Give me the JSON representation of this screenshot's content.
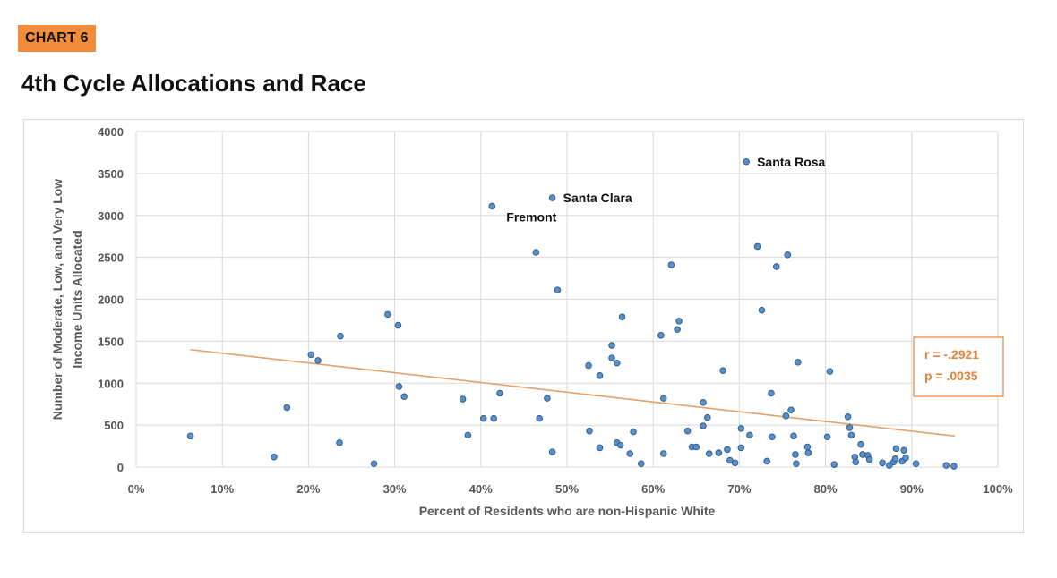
{
  "header": {
    "badge": "CHART 6",
    "title": "4th Cycle Allocations and Race"
  },
  "colors": {
    "badge": "#f28c3a",
    "point_fill": "#5b8fc7",
    "point_stroke": "#2f5f8f",
    "trendline": "#e8a06a",
    "stat_text": "#e8823a"
  },
  "chart_data": {
    "type": "scatter",
    "title": "4th Cycle Allocations and Race",
    "xlabel": "Percent of Residents who are non-Hispanic White",
    "ylabel_lines": [
      "Number of Moderate, Low, and Very Low",
      "Income Units Allocated"
    ],
    "xlim": [
      0,
      100
    ],
    "ylim": [
      0,
      4000
    ],
    "xticks": [
      "0%",
      "10%",
      "20%",
      "30%",
      "40%",
      "50%",
      "60%",
      "70%",
      "80%",
      "90%",
      "100%"
    ],
    "yticks": [
      "0",
      "500",
      "1000",
      "1500",
      "2000",
      "2500",
      "3000",
      "3500",
      "4000"
    ],
    "grid": true,
    "points": [
      {
        "x": 6.3,
        "y": 370
      },
      {
        "x": 16.0,
        "y": 120
      },
      {
        "x": 17.5,
        "y": 710
      },
      {
        "x": 20.3,
        "y": 1340
      },
      {
        "x": 21.1,
        "y": 1270
      },
      {
        "x": 23.6,
        "y": 290
      },
      {
        "x": 23.7,
        "y": 1560
      },
      {
        "x": 27.6,
        "y": 40
      },
      {
        "x": 29.2,
        "y": 1820
      },
      {
        "x": 30.4,
        "y": 1690
      },
      {
        "x": 30.5,
        "y": 960
      },
      {
        "x": 31.1,
        "y": 840
      },
      {
        "x": 37.9,
        "y": 810
      },
      {
        "x": 38.5,
        "y": 380
      },
      {
        "x": 40.3,
        "y": 580
      },
      {
        "x": 41.3,
        "y": 3110,
        "label": "Fremont"
      },
      {
        "x": 41.5,
        "y": 580
      },
      {
        "x": 42.2,
        "y": 880
      },
      {
        "x": 46.4,
        "y": 2560
      },
      {
        "x": 46.8,
        "y": 580
      },
      {
        "x": 47.7,
        "y": 820
      },
      {
        "x": 48.3,
        "y": 3210,
        "label": "Santa Clara"
      },
      {
        "x": 48.3,
        "y": 180
      },
      {
        "x": 48.9,
        "y": 2110
      },
      {
        "x": 52.5,
        "y": 1210
      },
      {
        "x": 52.6,
        "y": 430
      },
      {
        "x": 53.8,
        "y": 1090
      },
      {
        "x": 53.8,
        "y": 230
      },
      {
        "x": 55.2,
        "y": 1450
      },
      {
        "x": 55.2,
        "y": 1300
      },
      {
        "x": 55.8,
        "y": 1240
      },
      {
        "x": 55.8,
        "y": 290
      },
      {
        "x": 56.2,
        "y": 260
      },
      {
        "x": 56.4,
        "y": 1790
      },
      {
        "x": 57.3,
        "y": 160
      },
      {
        "x": 57.7,
        "y": 420
      },
      {
        "x": 58.6,
        "y": 40
      },
      {
        "x": 60.9,
        "y": 1570
      },
      {
        "x": 61.2,
        "y": 820
      },
      {
        "x": 61.2,
        "y": 160
      },
      {
        "x": 62.1,
        "y": 2410
      },
      {
        "x": 62.8,
        "y": 1640
      },
      {
        "x": 63.0,
        "y": 1740
      },
      {
        "x": 64.0,
        "y": 430
      },
      {
        "x": 64.5,
        "y": 240
      },
      {
        "x": 65.0,
        "y": 240
      },
      {
        "x": 65.8,
        "y": 490
      },
      {
        "x": 65.8,
        "y": 770
      },
      {
        "x": 66.3,
        "y": 590
      },
      {
        "x": 66.5,
        "y": 160
      },
      {
        "x": 67.6,
        "y": 170
      },
      {
        "x": 68.1,
        "y": 1150
      },
      {
        "x": 68.6,
        "y": 210
      },
      {
        "x": 68.9,
        "y": 80
      },
      {
        "x": 69.5,
        "y": 50
      },
      {
        "x": 70.2,
        "y": 460
      },
      {
        "x": 70.2,
        "y": 230
      },
      {
        "x": 70.8,
        "y": 3640,
        "label": "Santa Rosa"
      },
      {
        "x": 71.2,
        "y": 380
      },
      {
        "x": 72.1,
        "y": 2630
      },
      {
        "x": 72.6,
        "y": 1870
      },
      {
        "x": 73.2,
        "y": 70
      },
      {
        "x": 73.7,
        "y": 880
      },
      {
        "x": 73.8,
        "y": 360
      },
      {
        "x": 74.3,
        "y": 2390
      },
      {
        "x": 75.4,
        "y": 610
      },
      {
        "x": 75.6,
        "y": 2530
      },
      {
        "x": 76.0,
        "y": 680
      },
      {
        "x": 76.3,
        "y": 370
      },
      {
        "x": 76.5,
        "y": 150
      },
      {
        "x": 76.6,
        "y": 40
      },
      {
        "x": 76.8,
        "y": 1250
      },
      {
        "x": 77.9,
        "y": 240
      },
      {
        "x": 78.0,
        "y": 170
      },
      {
        "x": 80.2,
        "y": 360
      },
      {
        "x": 80.5,
        "y": 1140
      },
      {
        "x": 81.0,
        "y": 30
      },
      {
        "x": 82.6,
        "y": 600
      },
      {
        "x": 82.8,
        "y": 470
      },
      {
        "x": 83.0,
        "y": 380
      },
      {
        "x": 83.4,
        "y": 120
      },
      {
        "x": 83.5,
        "y": 60
      },
      {
        "x": 84.1,
        "y": 270
      },
      {
        "x": 84.3,
        "y": 150
      },
      {
        "x": 84.9,
        "y": 140
      },
      {
        "x": 85.1,
        "y": 90
      },
      {
        "x": 86.6,
        "y": 50
      },
      {
        "x": 87.4,
        "y": 20
      },
      {
        "x": 87.9,
        "y": 60
      },
      {
        "x": 88.1,
        "y": 100
      },
      {
        "x": 88.2,
        "y": 220
      },
      {
        "x": 88.9,
        "y": 70
      },
      {
        "x": 89.1,
        "y": 200
      },
      {
        "x": 89.3,
        "y": 110
      },
      {
        "x": 90.5,
        "y": 40
      },
      {
        "x": 94.0,
        "y": 20
      },
      {
        "x": 94.9,
        "y": 10
      }
    ],
    "trendline": {
      "x": [
        6.3,
        95.0
      ],
      "y": [
        1400,
        370
      ]
    },
    "annotation": {
      "lines": [
        "r = -.2921",
        "p = .0035"
      ]
    }
  }
}
